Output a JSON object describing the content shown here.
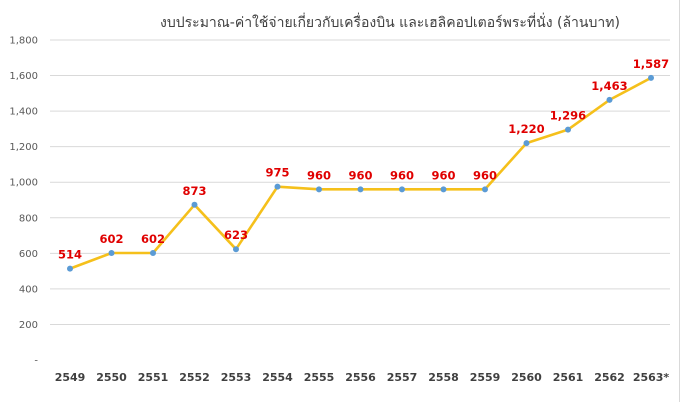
{
  "chart_data": {
    "type": "line",
    "title": "งบประมาณ-ค่าใช้จ่ายเกี่ยวกับเครื่องบิน และเฮลิคอปเตอร์พระที่นั่ง (ล้านบาท)",
    "xlabel": "",
    "ylabel": "",
    "ylim": [
      0,
      1800
    ],
    "yticks": [
      {
        "value": 0,
        "label": "-"
      },
      {
        "value": 200,
        "label": "200"
      },
      {
        "value": 400,
        "label": "400"
      },
      {
        "value": 600,
        "label": "600"
      },
      {
        "value": 800,
        "label": "800"
      },
      {
        "value": 1000,
        "label": "1,000"
      },
      {
        "value": 1200,
        "label": "1,200"
      },
      {
        "value": 1400,
        "label": "1,400"
      },
      {
        "value": 1600,
        "label": "1,600"
      },
      {
        "value": 1800,
        "label": "1,800"
      }
    ],
    "grid": true,
    "categories": [
      "2549",
      "2550",
      "2551",
      "2552",
      "2553",
      "2554",
      "2555",
      "2556",
      "2557",
      "2558",
      "2559",
      "2560",
      "2561",
      "2562",
      "2563*"
    ],
    "series": [
      {
        "values": [
          514,
          602,
          602,
          873,
          623,
          975,
          960,
          960,
          960,
          960,
          960,
          1220,
          1296,
          1463,
          1587
        ],
        "labels": [
          "514",
          "602",
          "602",
          "873",
          "623",
          "975",
          "960",
          "960",
          "960",
          "960",
          "960",
          "1,220",
          "1,296",
          "1,463",
          "1,587"
        ]
      }
    ],
    "colors": {
      "line": "#f5c01b",
      "marker": "#5b9bd5",
      "data_label": "#e00000",
      "grid": "#d9d9d9"
    }
  }
}
